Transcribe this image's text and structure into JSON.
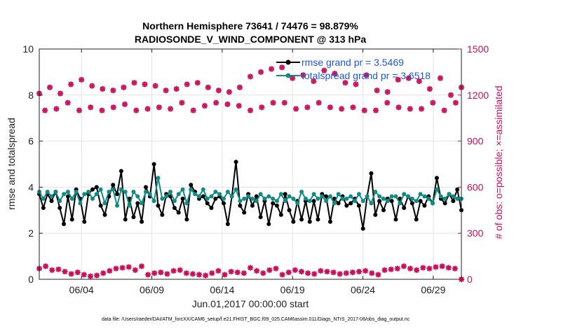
{
  "chart_data": {
    "type": "line",
    "title_line1": "Northern Hemisphere 73641 / 74476 = 98.879%",
    "title_line2": "RADIOSONDE_V_WIND_COMPONENT @ 313 hPa",
    "xlabel": "Jun.01,2017 00:00:00 start",
    "ylabel_left": "rmse and totalspread",
    "ylabel_right": "# of obs: o=possible; ×=assimilated",
    "xlim": [
      0,
      30
    ],
    "ylim_left": [
      0,
      10
    ],
    "ylim_right": [
      0,
      1500
    ],
    "grid": true,
    "x_ticks": [
      {
        "x": 3,
        "label": "06/04"
      },
      {
        "x": 8,
        "label": "06/09"
      },
      {
        "x": 13,
        "label": "06/14"
      },
      {
        "x": 18,
        "label": "06/19"
      },
      {
        "x": 23,
        "label": "06/24"
      },
      {
        "x": 28,
        "label": "06/29"
      }
    ],
    "y_ticks_left": [
      "0",
      "2",
      "4",
      "6",
      "8",
      "10"
    ],
    "y_ticks_right": [
      "0",
      "300",
      "600",
      "900",
      "1200",
      "1500"
    ],
    "legend": [
      {
        "label": "rmse grand pr = 3.5469",
        "color": "#000000"
      },
      {
        "label": "totalspread grand pr = 3.6518",
        "color": "#118a86"
      }
    ],
    "colors": {
      "rmse": "#000000",
      "spread": "#118a86",
      "obs": "#c8105a",
      "grid": "#e3e3e3",
      "legend_text": "#1a55e8"
    },
    "series": [
      {
        "name": "rmse",
        "values": [
          3.7,
          3.1,
          3.7,
          3.4,
          3.8,
          3.1,
          2.4,
          3.6,
          2.6,
          3.9,
          3.5,
          2.5,
          3.7,
          3.9,
          4.0,
          3.2,
          2.8,
          3.6,
          4.1,
          3.7,
          4.7,
          2.6,
          3.5,
          2.7,
          3.3,
          2.5,
          4.0,
          3.6,
          5.0,
          3.2,
          2.8,
          3.7,
          3.6,
          3.1,
          2.9,
          3.5,
          2.6,
          4.1,
          3.8,
          3.5,
          3.6,
          3.3,
          3.1,
          3.5,
          3.6,
          3.3,
          2.4,
          3.6,
          5.1,
          3.2,
          2.9,
          3.7,
          3.2,
          3.6,
          2.7,
          3.4,
          2.4,
          3.3,
          3.2,
          2.8,
          3.7,
          3.0,
          2.5,
          3.4,
          2.6,
          3.4,
          2.5,
          3.4,
          2.6,
          3.7,
          3.6,
          2.5,
          3.5,
          3.3,
          3.6,
          3.2,
          3.3,
          3.5,
          3.2,
          2.2,
          3.6,
          4.6,
          2.8,
          3.4,
          3.0,
          3.5,
          3.4,
          2.6,
          3.5,
          3.1,
          3.6,
          3.3,
          2.6,
          3.4,
          3.2,
          3.6,
          3.3,
          4.4,
          3.5,
          3.3,
          3.7,
          3.4,
          3.9,
          3.0
        ]
      },
      {
        "name": "totalspread",
        "values": [
          3.8,
          3.5,
          3.8,
          3.6,
          3.8,
          3.4,
          3.7,
          3.8,
          3.5,
          3.8,
          3.3,
          3.7,
          3.8,
          3.5,
          3.7,
          3.9,
          3.3,
          3.8,
          3.9,
          3.2,
          3.9,
          3.8,
          3.2,
          3.8,
          3.6,
          3.3,
          3.8,
          3.7,
          3.4,
          4.4,
          3.5,
          3.6,
          3.8,
          3.4,
          3.7,
          3.9,
          3.3,
          3.9,
          3.7,
          3.6,
          3.9,
          3.5,
          3.6,
          3.8,
          3.7,
          3.5,
          3.8,
          3.6,
          3.9,
          3.4,
          3.5,
          3.6,
          3.5,
          3.4,
          3.7,
          3.5,
          3.6,
          3.5,
          3.4,
          3.7,
          3.4,
          3.6,
          3.5,
          3.3,
          3.8,
          3.5,
          3.4,
          3.7,
          3.5,
          3.6,
          3.4,
          3.6,
          3.3,
          3.7,
          3.5,
          3.5,
          3.6,
          3.4,
          3.7,
          3.4,
          3.6,
          3.3,
          3.8,
          3.6,
          3.5,
          3.4,
          3.6,
          3.6,
          3.3,
          3.7,
          3.6,
          3.5,
          3.4,
          3.7,
          3.6,
          3.5,
          3.3,
          3.9,
          3.6,
          3.5,
          3.7,
          3.6,
          3.5,
          3.5
        ]
      },
      {
        "name": "obs_possible_upper",
        "values": [
          1210,
          1250,
          1210,
          1270,
          1300,
          1260,
          1240,
          1230,
          1250,
          1280,
          1270,
          1260,
          1230,
          1240,
          1270,
          1280,
          1250,
          1230,
          1220,
          1250,
          1320,
          1350,
          1370,
          1380,
          1310,
          1330,
          1290,
          1360,
          1340,
          1280,
          1270,
          1330,
          1230,
          1220,
          1300,
          1310,
          1290,
          1240,
          1310,
          1200,
          1250
        ]
      },
      {
        "name": "obs_possible_lower",
        "values": [
          1100,
          1110,
          1150,
          1100,
          1120,
          1100,
          1120,
          1140,
          1100,
          1110,
          1120,
          1110,
          1150,
          1100,
          1130,
          1150,
          1140,
          1130,
          1100,
          1120,
          1150,
          1150,
          1110,
          1120,
          1150,
          1120,
          1110,
          1120,
          1100,
          1100,
          1150,
          1120,
          1110,
          1110,
          1150,
          1100,
          1150
        ]
      },
      {
        "name": "obs_assimilated_low",
        "values": [
          70,
          85,
          60,
          65,
          50,
          35,
          45,
          30,
          20,
          25,
          40,
          55,
          70,
          75,
          80,
          60,
          85,
          30,
          40,
          45,
          35,
          55,
          60,
          40,
          35,
          30,
          25,
          40,
          55,
          30,
          50,
          45,
          40,
          75,
          55,
          40,
          60,
          70,
          30,
          45,
          60,
          50,
          40,
          35,
          55,
          50,
          45,
          35,
          40,
          45,
          50,
          55,
          40,
          30,
          60,
          65,
          70,
          85,
          70,
          60,
          75,
          70,
          80,
          85,
          75,
          70,
          0
        ]
      }
    ]
  },
  "footer": "data file: /Users/raeder/DAI/ATM_forcXX/CAM6_setup/f.e21.FHIST_BGC.f09_025.CAM6assim.011/Diags_NTrS_2017-06/obs_diag_output.nc"
}
